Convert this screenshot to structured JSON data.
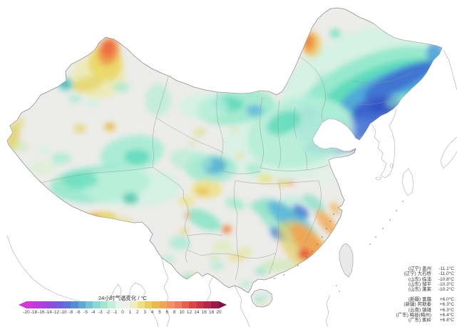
{
  "title": "24小时气温变化 / °C",
  "colorbar": {
    "tick_labels": [
      "-20",
      "-18",
      "-16",
      "-14",
      "-12",
      "-10",
      "-8",
      "-6",
      "-5",
      "-4",
      "-3",
      "-2",
      "-1",
      "0",
      "1",
      "2",
      "3",
      "4",
      "5",
      "6",
      "8",
      "10",
      "12",
      "14",
      "16",
      "18",
      "20"
    ],
    "segment_colors": [
      "#d238d8",
      "#bc3ade",
      "#a443e2",
      "#8a4fe2",
      "#6f5ede",
      "#5a74d8",
      "#538ed2",
      "#5fa8d2",
      "#74c2d4",
      "#8dd8d2",
      "#a3e6cf",
      "#c2efdb",
      "#e4f4ec",
      "#efefed",
      "#f0ecc2",
      "#ece083",
      "#e9cf59",
      "#ecb84e",
      "#f0a455",
      "#f29168",
      "#ef7a5e",
      "#e85f4e",
      "#dc4545",
      "#cb3347",
      "#b52747",
      "#9c1c48"
    ],
    "left_arrow_color": "#d934d4",
    "right_arrow_color": "#821245"
  },
  "extremes": {
    "cooling": [
      {
        "label": "(辽宁) 盖州",
        "value": "-11.1°C"
      },
      {
        "label": "(辽宁) 大石桥",
        "value": "-11.0°C"
      },
      {
        "label": "(山东) 临淄",
        "value": "-10.8°C"
      },
      {
        "label": "(山东) 邹平",
        "value": "-10.3°C"
      },
      {
        "label": "(山东) 蓬莱",
        "value": "-10.2°C"
      }
    ],
    "warming": [
      {
        "label": "(新疆) 富蕴",
        "value": "+6.0°C"
      },
      {
        "label": "(新疆) 阿勒泰",
        "value": "+6.3°C"
      },
      {
        "label": "(云南) 镇雄",
        "value": "+6.3°C"
      },
      {
        "label": "(广东) 梅县(梅州)",
        "value": "+6.4°C"
      },
      {
        "label": "(广东) 蕉岭",
        "value": "+6.8°C"
      }
    ]
  },
  "map": {
    "land_color": "#ececea",
    "sea_color": "#ffffff",
    "border_color": "#8e8e8e"
  },
  "chart_data": {
    "type": "heatmap",
    "title": "24小时气温变化 / °C",
    "units": "°C",
    "colorbar_range": [
      -20,
      20
    ],
    "colorbar_ticks": [
      -20,
      -18,
      -16,
      -14,
      -12,
      -10,
      -8,
      -6,
      -5,
      -4,
      -3,
      -2,
      -1,
      0,
      1,
      2,
      3,
      4,
      5,
      6,
      8,
      10,
      12,
      14,
      16,
      18,
      20
    ],
    "max_cooling_stations": [
      {
        "province": "辽宁",
        "station": "盖州",
        "change_c": -11.1
      },
      {
        "province": "辽宁",
        "station": "大石桥",
        "change_c": -11.0
      },
      {
        "province": "山东",
        "station": "临淄",
        "change_c": -10.8
      },
      {
        "province": "山东",
        "station": "邹平",
        "change_c": -10.3
      },
      {
        "province": "山东",
        "station": "蓬莱",
        "change_c": -10.2
      }
    ],
    "max_warming_stations": [
      {
        "province": "新疆",
        "station": "富蕴",
        "change_c": 6.0
      },
      {
        "province": "新疆",
        "station": "阿勒泰",
        "change_c": 6.3
      },
      {
        "province": "云南",
        "station": "镇雄",
        "change_c": 6.3
      },
      {
        "province": "广东",
        "station": "梅县(梅州)",
        "change_c": 6.4
      },
      {
        "province": "广东",
        "station": "蕉岭",
        "change_c": 6.8
      }
    ],
    "pattern_summary": "Strong cooling band (-6 to -11°C, blue) across Northeast China, Bohai rim and Shandong; warming (+4 to +6°C, orange/red) over Altay in north Xinjiang and coastal Fujian/east Guangdong; weak mixed anomalies elsewhere."
  }
}
